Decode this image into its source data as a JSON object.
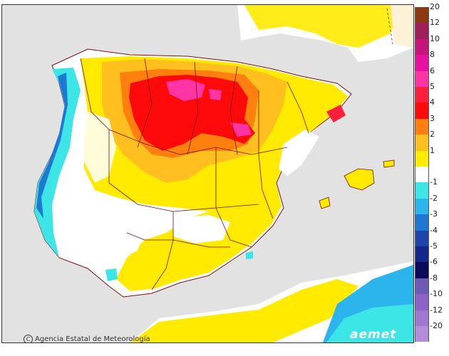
{
  "attribution": "Agencia Estatal de Meteorología",
  "logo_text": "aemet",
  "legend": [
    {
      "label": "20",
      "color": "#8b3a0f"
    },
    {
      "label": "12",
      "color": "#a01e5a"
    },
    {
      "label": "10",
      "color": "#c4157a"
    },
    {
      "label": "8",
      "color": "#e80fa2"
    },
    {
      "label": "6",
      "color": "#ff35a5"
    },
    {
      "label": "5",
      "color": "#ff1f3c"
    },
    {
      "label": "4",
      "color": "#ff0a0a"
    },
    {
      "label": "3",
      "color": "#ff7f0f"
    },
    {
      "label": "2",
      "color": "#ffbf1f"
    },
    {
      "label": "1",
      "color": "#ffea00"
    },
    {
      "label": "",
      "color": "#ffffff"
    },
    {
      "label": "-1",
      "color": "#3de6e6"
    },
    {
      "label": "-2",
      "color": "#2cb4ec"
    },
    {
      "label": "-3",
      "color": "#1e78d2"
    },
    {
      "label": "-4",
      "color": "#1e46aa"
    },
    {
      "label": "-5",
      "color": "#14288c"
    },
    {
      "label": "-6",
      "color": "#0a0a5a"
    },
    {
      "label": "-8",
      "color": "#6e5ab4"
    },
    {
      "label": "-10",
      "color": "#8c64c8"
    },
    {
      "label": "-12",
      "color": "#a078d2"
    },
    {
      "label": "-20",
      "color": "#b48cdc"
    }
  ],
  "colors": {
    "background_land": "#ffffff",
    "sea": "#e2e2e2",
    "border_lines": "#7a1010"
  }
}
